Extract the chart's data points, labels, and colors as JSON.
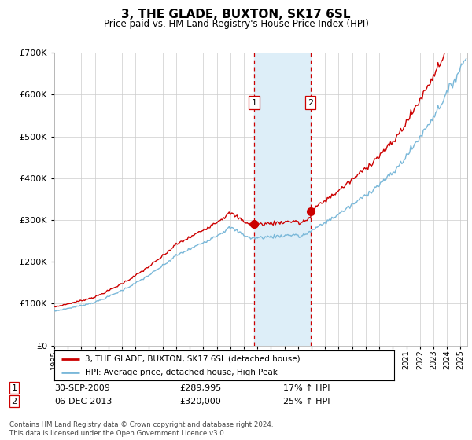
{
  "title": "3, THE GLADE, BUXTON, SK17 6SL",
  "subtitle": "Price paid vs. HM Land Registry's House Price Index (HPI)",
  "legend_line1": "3, THE GLADE, BUXTON, SK17 6SL (detached house)",
  "legend_line2": "HPI: Average price, detached house, High Peak",
  "transaction1_date": "30-SEP-2009",
  "transaction1_price": "£289,995",
  "transaction1_hpi": "17% ↑ HPI",
  "transaction2_date": "06-DEC-2013",
  "transaction2_price": "£320,000",
  "transaction2_hpi": "25% ↑ HPI",
  "footnote": "Contains HM Land Registry data © Crown copyright and database right 2024.\nThis data is licensed under the Open Government Licence v3.0.",
  "hpi_color": "#7ab8d9",
  "price_color": "#cc0000",
  "shade_color": "#ddeef8",
  "dashed_color": "#cc0000",
  "ylim_min": 0,
  "ylim_max": 700000,
  "xlim_min": 1995.0,
  "xlim_max": 2025.5,
  "transaction1_x": 2009.75,
  "transaction2_x": 2013.92,
  "p1": 289995,
  "p2": 320000
}
